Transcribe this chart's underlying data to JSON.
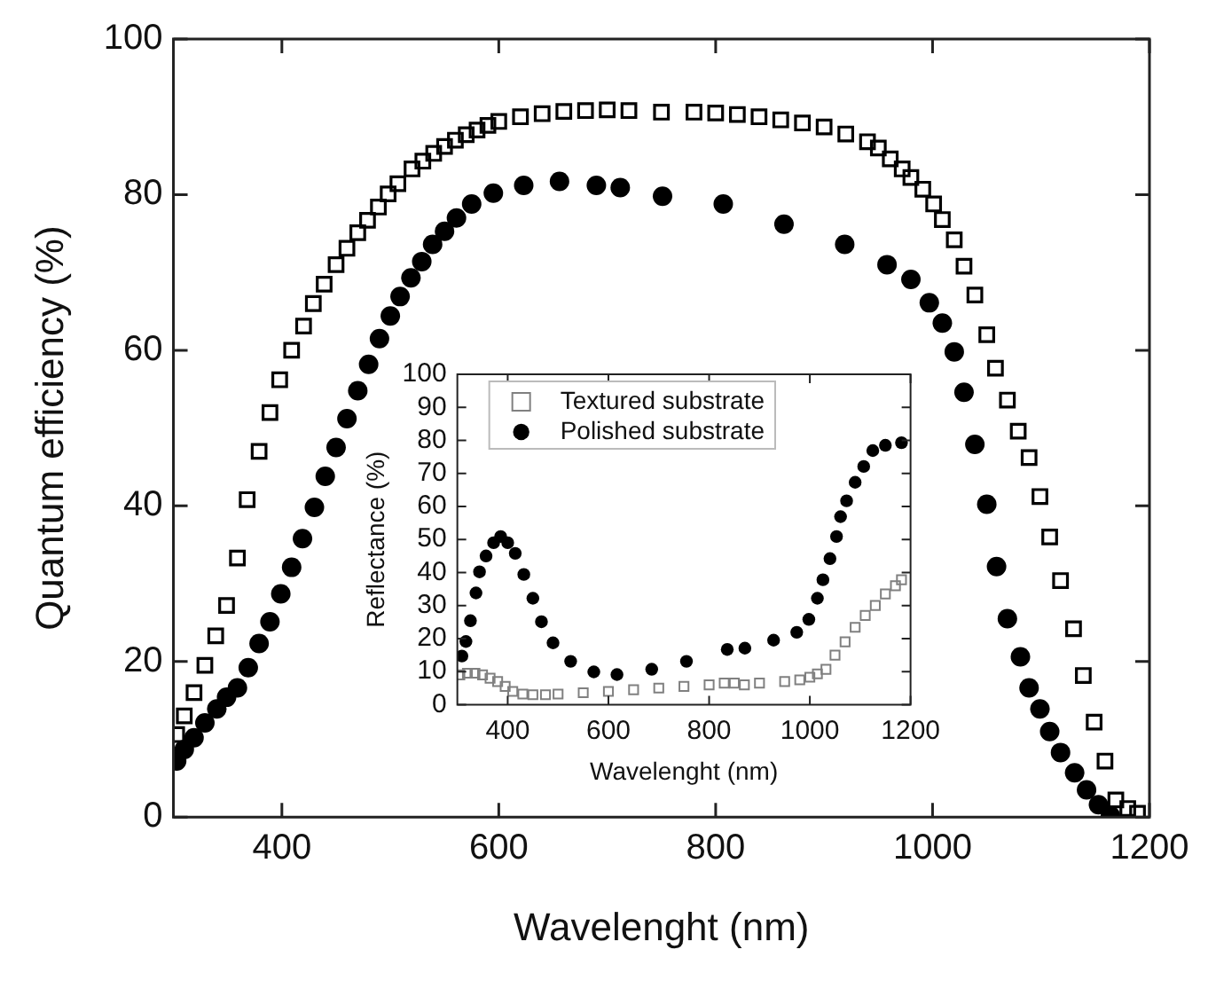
{
  "chart_data": [
    {
      "type": "scatter",
      "xlabel": "Wavelenght (nm)",
      "ylabel": "Quantum efficiency (%)",
      "xlim": [
        300,
        1200
      ],
      "xticks": [
        400,
        600,
        800,
        1000,
        1200
      ],
      "ylim": [
        0,
        100
      ],
      "yticks": [
        0,
        20,
        40,
        60,
        80,
        100
      ],
      "legend": false,
      "grid": false,
      "series": [
        {
          "color": "#000000",
          "marker": "square",
          "x": [
            303,
            310,
            319,
            329,
            339,
            349,
            359,
            368,
            379,
            389,
            398,
            409,
            420,
            429,
            439,
            450,
            460,
            470,
            479,
            489,
            498,
            507,
            520,
            530,
            540,
            550,
            560,
            570,
            580,
            590,
            600,
            620,
            640,
            660,
            680,
            700,
            720,
            750,
            780,
            800,
            820,
            840,
            860,
            880,
            900,
            920,
            940,
            950,
            961,
            972,
            980,
            991,
            1001,
            1009,
            1020,
            1029,
            1039,
            1050,
            1058,
            1069,
            1079,
            1089,
            1099,
            1108,
            1118,
            1130,
            1139,
            1149,
            1159,
            1169,
            1180,
            1189
          ],
          "values": [
            10.6,
            13,
            16,
            19.5,
            23.3,
            27.2,
            33.3,
            40.8,
            47,
            52,
            56.2,
            60,
            63.1,
            66,
            68.5,
            71,
            73.1,
            75.1,
            76.7,
            78.4,
            80.1,
            81.4,
            83.3,
            84.3,
            85.3,
            86.2,
            87,
            87.7,
            88.3,
            88.9,
            89.4,
            90,
            90.4,
            90.7,
            90.8,
            90.9,
            90.8,
            90.6,
            90.6,
            90.5,
            90.3,
            90,
            89.6,
            89.2,
            88.7,
            87.8,
            86.8,
            86,
            84.6,
            83.3,
            82.2,
            80.7,
            78.8,
            76.8,
            74.2,
            70.8,
            67.1,
            62,
            57.7,
            53.6,
            49.6,
            46.2,
            41.2,
            36,
            30.4,
            24.2,
            18.2,
            12.2,
            7.2,
            2.2,
            1.1,
            0.5
          ]
        },
        {
          "color": "#000000",
          "marker": "circle",
          "x": [
            303,
            310,
            319,
            329,
            340,
            349,
            359,
            369,
            379,
            389,
            399,
            409,
            419,
            430,
            440,
            450,
            460,
            470,
            480,
            490,
            500,
            509,
            519,
            529,
            539,
            550,
            561,
            575,
            595,
            623,
            656,
            690,
            712,
            751,
            807,
            863,
            919,
            958,
            980,
            997,
            1009,
            1020,
            1029,
            1039,
            1050,
            1059,
            1069,
            1081,
            1089,
            1099,
            1108,
            1118,
            1131,
            1142,
            1153,
            1164
          ],
          "values": [
            7.2,
            8.7,
            10.2,
            12.1,
            13.9,
            15.4,
            16.6,
            19.2,
            22.3,
            25.1,
            28.7,
            32.1,
            35.8,
            39.8,
            43.8,
            47.5,
            51.2,
            54.8,
            58.2,
            61.5,
            64.4,
            66.9,
            69.3,
            71.4,
            73.6,
            75.3,
            77,
            78.8,
            80.2,
            81.2,
            81.7,
            81.2,
            80.9,
            79.8,
            78.8,
            76.2,
            73.6,
            71,
            69.1,
            66.1,
            63.5,
            59.8,
            54.6,
            47.9,
            40.2,
            32.2,
            25.5,
            20.6,
            16.6,
            13.9,
            11,
            8.3,
            5.7,
            3.5,
            1.6,
            0.2
          ]
        }
      ]
    },
    {
      "type": "scatter",
      "xlabel": "Wavelenght (nm)",
      "ylabel": "Reflectance (%)",
      "xlim": [
        300,
        1200
      ],
      "xticks": [
        400,
        600,
        800,
        1000,
        1200
      ],
      "ylim": [
        0,
        100
      ],
      "yticks": [
        0,
        10,
        20,
        30,
        40,
        50,
        60,
        70,
        80,
        90,
        100
      ],
      "legend": "top left",
      "grid": false,
      "series": [
        {
          "name": "Textured substrate",
          "color": "#808080",
          "marker": "square",
          "x": [
            305,
            320,
            335,
            350,
            365,
            380,
            395,
            410,
            430,
            450,
            475,
            500,
            550,
            600,
            650,
            700,
            750,
            800,
            830,
            850,
            870,
            900,
            950,
            980,
            1000,
            1015,
            1032,
            1050,
            1070,
            1090,
            1110,
            1130,
            1150,
            1170,
            1182
          ],
          "values": [
            9,
            9.5,
            9.5,
            9,
            8,
            7,
            5.5,
            4,
            3.2,
            3,
            3,
            3.2,
            3.6,
            4,
            4.5,
            5,
            5.5,
            6,
            6.5,
            6.5,
            6,
            6.5,
            7,
            7.5,
            8.3,
            9.3,
            10.7,
            15,
            19,
            23.4,
            27,
            30,
            33.5,
            36,
            37.8
          ]
        },
        {
          "name": "Polished substrate",
          "color": "#000000",
          "marker": "circle",
          "x": [
            309,
            317,
            326,
            337,
            344,
            357,
            372,
            386,
            400,
            415,
            432,
            450,
            467,
            490,
            525,
            571,
            617,
            686,
            755,
            836,
            871,
            928,
            974,
            998,
            1015,
            1026,
            1040,
            1053,
            1061,
            1073,
            1090,
            1107,
            1125,
            1150,
            1182
          ],
          "values": [
            14.7,
            19.1,
            25.4,
            33.8,
            40.2,
            45,
            49,
            50.9,
            49,
            45.8,
            39.4,
            32.2,
            25.1,
            18.7,
            13.1,
            9.9,
            9.1,
            10.7,
            13.1,
            16.7,
            17.1,
            19.5,
            21.9,
            25.8,
            32.2,
            37.8,
            44.2,
            50.9,
            56.9,
            61.7,
            67.3,
            72.1,
            76.9,
            78.5,
            79.3
          ]
        }
      ]
    }
  ]
}
